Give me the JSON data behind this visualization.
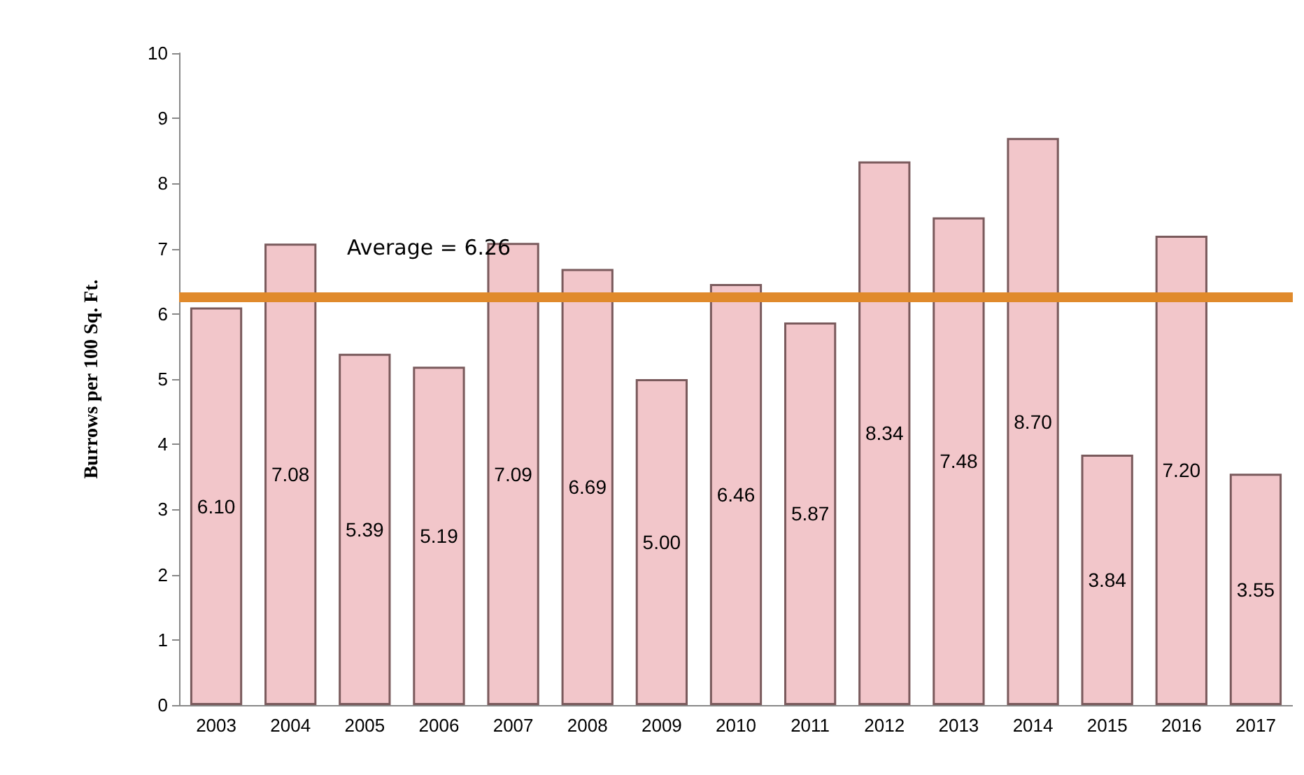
{
  "chart_data": {
    "type": "bar",
    "ylabel": "Burrows per 100 Sq. Ft.",
    "categories": [
      "2003",
      "2004",
      "2005",
      "2006",
      "2007",
      "2008",
      "2009",
      "2010",
      "2011",
      "2012",
      "2013",
      "2014",
      "2015",
      "2016",
      "2017"
    ],
    "values": [
      6.1,
      7.08,
      5.39,
      5.19,
      7.09,
      6.69,
      5.0,
      6.46,
      5.87,
      8.34,
      7.48,
      8.7,
      3.84,
      7.2,
      3.55
    ],
    "value_labels": [
      "6.10",
      "7.08",
      "5.39",
      "5.19",
      "7.09",
      "6.69",
      "5.00",
      "6.46",
      "5.87",
      "8.34",
      "7.48",
      "8.70",
      "3.84",
      "7.20",
      "3.55"
    ],
    "color": "#f2c6ca",
    "ylim": [
      0,
      10
    ],
    "yticks": [
      0,
      1,
      2,
      3,
      4,
      5,
      6,
      7,
      8,
      9,
      10
    ],
    "grid": false,
    "ref_lines": [
      {
        "axis": "y",
        "value": 6.26,
        "label": "Average = 6.26",
        "color": "#e08a2c"
      }
    ]
  }
}
